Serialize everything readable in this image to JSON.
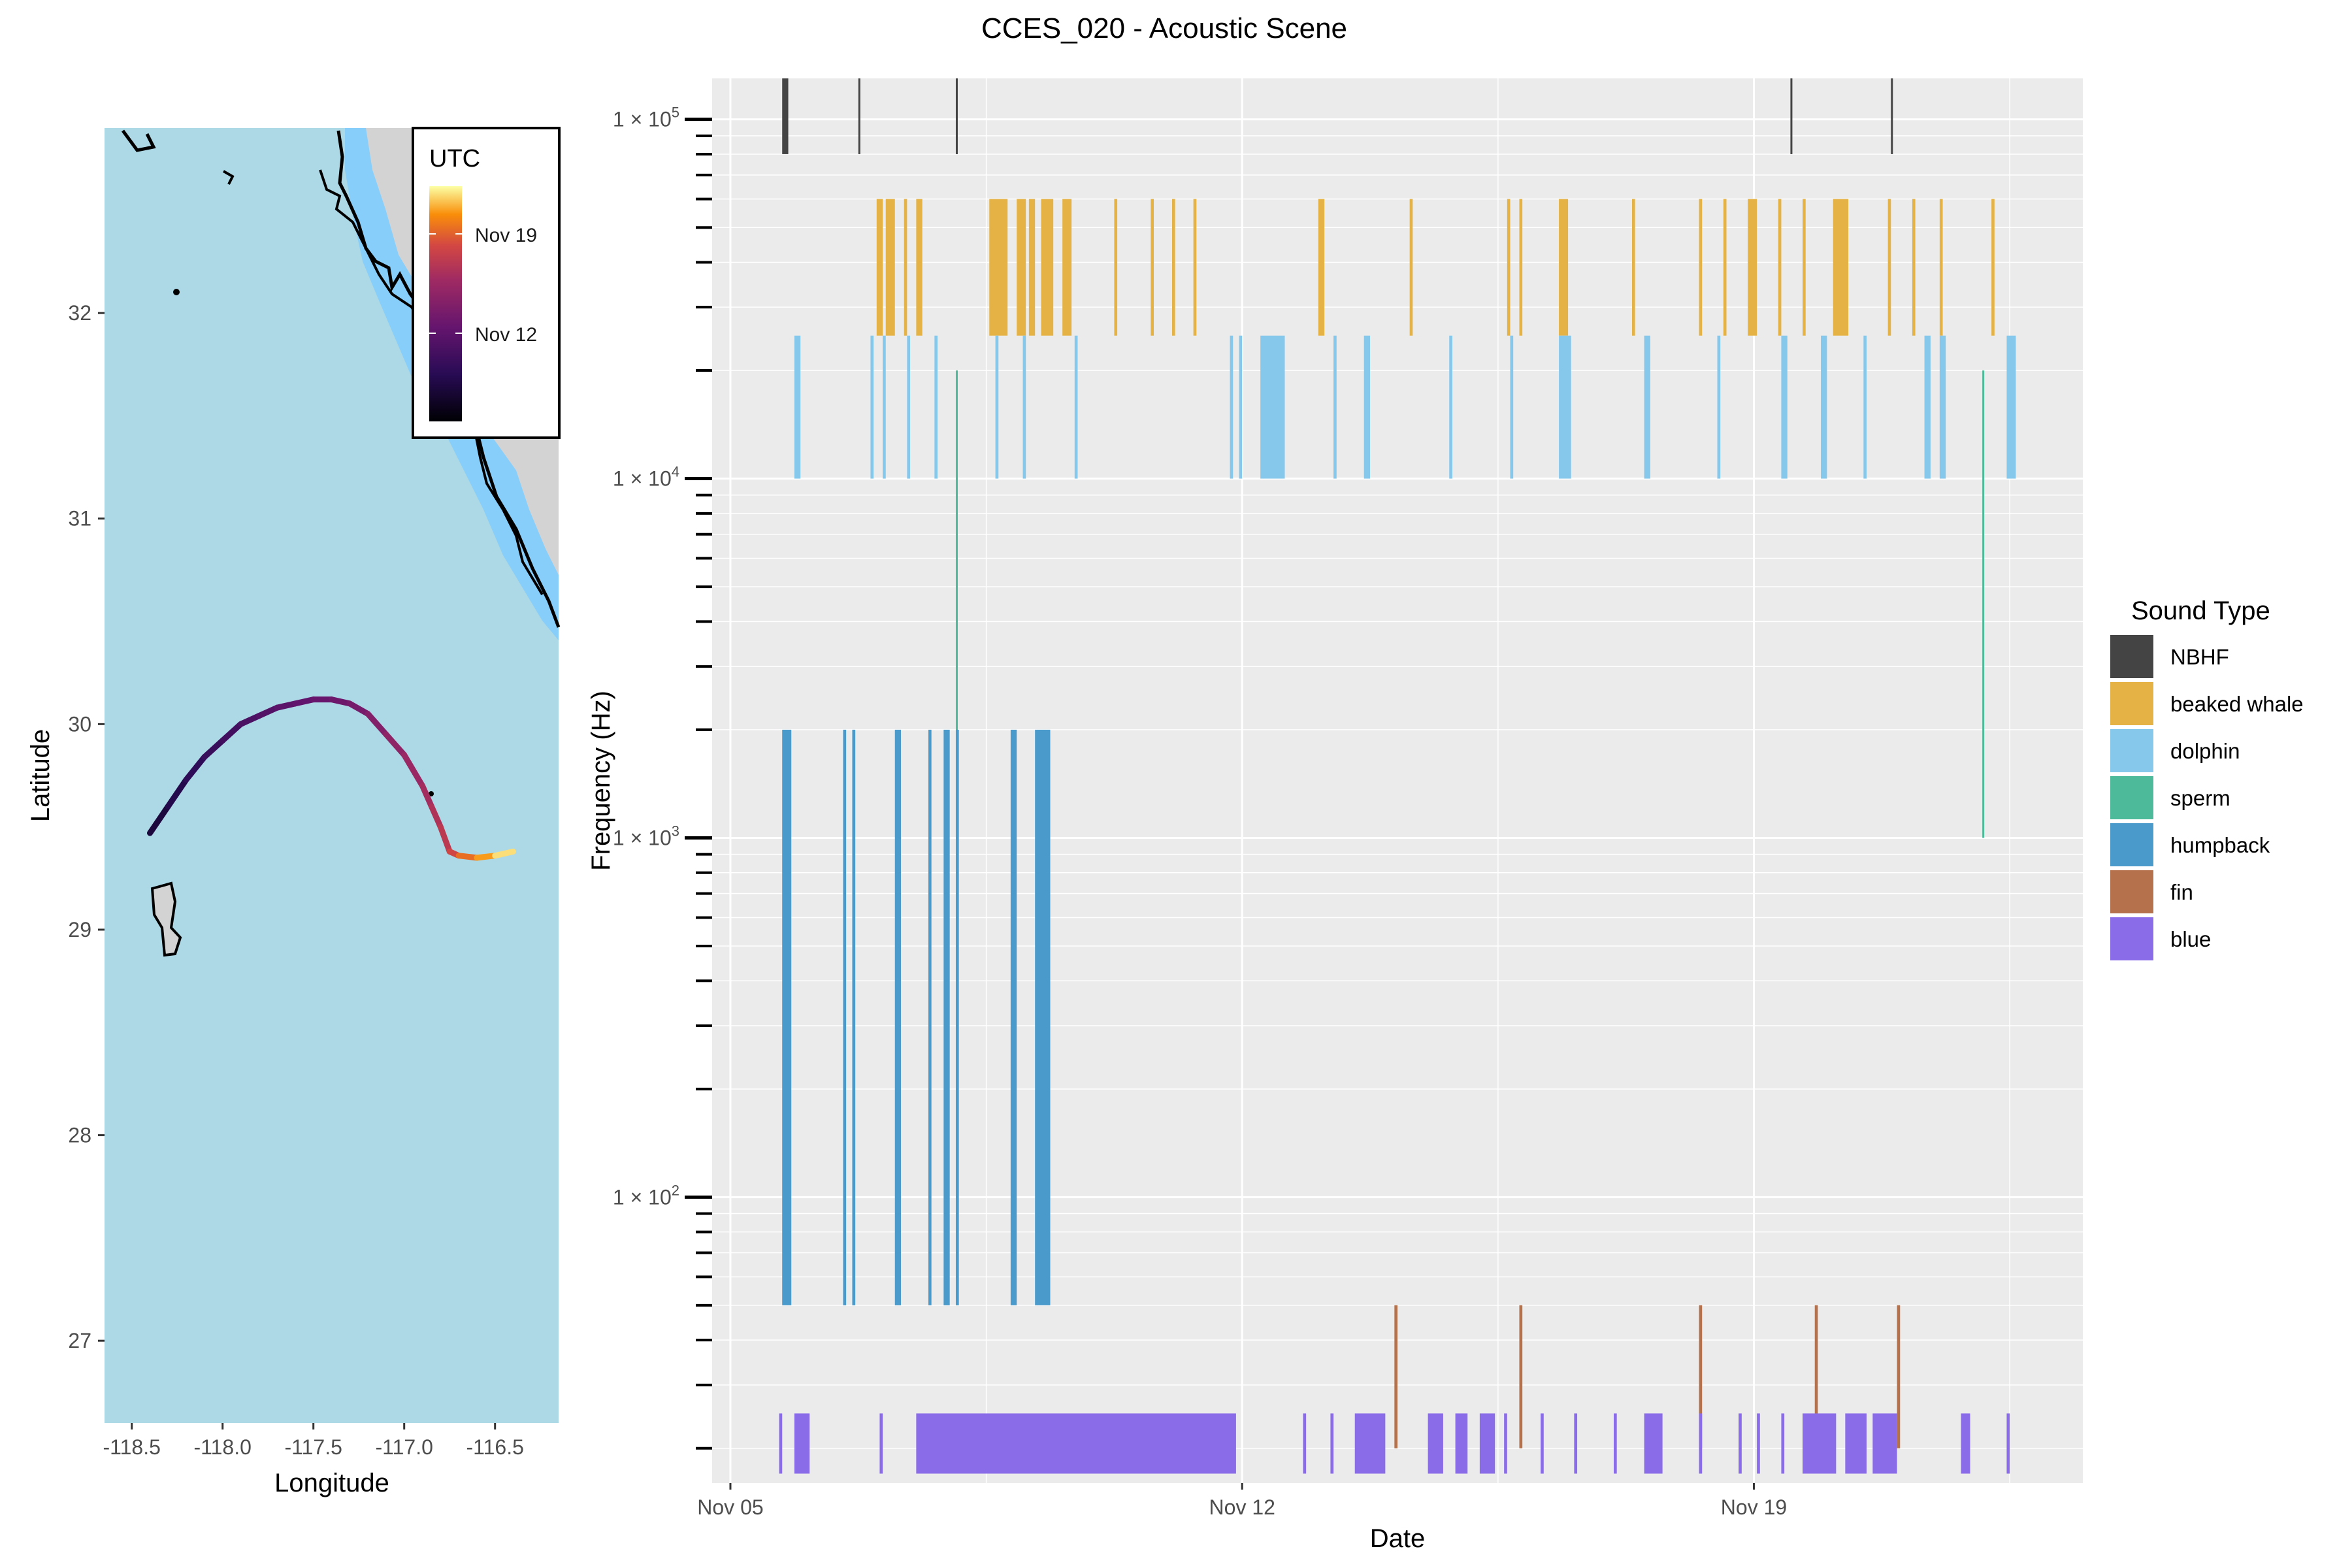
{
  "title": "CCES_020 - Acoustic Scene",
  "colors": {
    "panel_bg": "#ebebeb",
    "grid": "#ffffff",
    "sea": "#add8e6",
    "shallow": "#87cefa",
    "land": "#d3d3d3",
    "coast": "#000000"
  },
  "chart_data": [
    {
      "type": "map",
      "xlabel": "Longitude",
      "ylabel": "Latitude",
      "xlim": [
        -118.65,
        -116.15
      ],
      "ylim": [
        26.6,
        32.9
      ],
      "xticks": [
        -118.5,
        -118.0,
        -117.5,
        -117.0,
        -116.5
      ],
      "xtick_labels": [
        "-118.5",
        "-118.0",
        "-117.5",
        "-117.0",
        "-116.5"
      ],
      "yticks": [
        27,
        28,
        29,
        30,
        31,
        32
      ],
      "ytick_labels": [
        "27",
        "28",
        "29",
        "30",
        "31",
        "32"
      ],
      "legend": {
        "title": "UTC",
        "labels": [
          "Nov 19",
          "Nov 12"
        ],
        "colormap": "inferno",
        "placement": "top-right"
      },
      "track": {
        "x": [
          -118.4,
          -118.3,
          -118.2,
          -118.1,
          -118.0,
          -117.9,
          -117.8,
          -117.7,
          -117.6,
          -117.5,
          -117.4,
          -117.3,
          -117.2,
          -117.1,
          -117.0,
          -116.9,
          -116.85,
          -116.8,
          -116.75,
          -116.7,
          -116.6,
          -116.5,
          -116.4
        ],
        "y": [
          29.47,
          29.6,
          29.73,
          29.84,
          29.92,
          30.0,
          30.04,
          30.08,
          30.1,
          30.12,
          30.12,
          30.1,
          30.05,
          29.95,
          29.85,
          29.7,
          29.6,
          29.5,
          29.38,
          29.36,
          29.35,
          29.36,
          29.38
        ],
        "color_fraction": [
          0.12,
          0.16,
          0.2,
          0.24,
          0.27,
          0.3,
          0.33,
          0.36,
          0.38,
          0.4,
          0.42,
          0.44,
          0.48,
          0.52,
          0.56,
          0.6,
          0.63,
          0.66,
          0.7,
          0.78,
          0.86,
          0.93,
          1.0
        ]
      }
    },
    {
      "type": "timeline",
      "xlabel": "Date",
      "ylabel": "Frequency (Hz)",
      "y_scale": "log",
      "xlim": [
        "2023-11-04T18:00",
        "2023-11-23T12:00"
      ],
      "ylim": [
        16,
        130000
      ],
      "xticks": [
        "2023-11-05",
        "2023-11-12",
        "2023-11-19"
      ],
      "xtick_labels": [
        "Nov 05",
        "Nov 12",
        "Nov 19"
      ],
      "yticks": [
        100,
        1000,
        10000,
        100000
      ],
      "ytick_labels": [
        "1 × 10",
        "1 × 10",
        "1 × 10",
        "1 × 10"
      ],
      "ytick_exponents": [
        "2",
        "3",
        "4",
        "5"
      ],
      "legend": {
        "title": "Sound Type",
        "placement": "right",
        "entries": [
          "NBHF",
          "beaked whale",
          "dolphin",
          "sperm",
          "humpback",
          "fin",
          "blue"
        ]
      },
      "series": [
        {
          "name": "NBHF",
          "color": "#444444",
          "freq_range": [
            80000,
            130000
          ],
          "events": [
            [
              "2023-11-05T17:00",
              "2023-11-05T19:00"
            ],
            [
              "2023-11-06T18:00",
              "2023-11-06T18:30"
            ],
            [
              "2023-11-08T02:00",
              "2023-11-08T02:30"
            ],
            [
              "2023-11-19T12:00",
              "2023-11-19T12:30"
            ],
            [
              "2023-11-20T21:00",
              "2023-11-20T21:30"
            ]
          ]
        },
        {
          "name": "beaked whale",
          "color": "#e5b345",
          "freq_range": [
            25000,
            60000
          ],
          "events": [
            [
              "2023-11-07T00:00",
              "2023-11-07T02:00"
            ],
            [
              "2023-11-07T03:00",
              "2023-11-07T06:00"
            ],
            [
              "2023-11-07T09:00",
              "2023-11-07T10:00"
            ],
            [
              "2023-11-07T13:00",
              "2023-11-07T15:00"
            ],
            [
              "2023-11-08T13:00",
              "2023-11-08T19:00"
            ],
            [
              "2023-11-08T22:00",
              "2023-11-09T01:00"
            ],
            [
              "2023-11-09T02:00",
              "2023-11-09T04:00"
            ],
            [
              "2023-11-09T06:00",
              "2023-11-09T10:00"
            ],
            [
              "2023-11-09T13:00",
              "2023-11-09T16:00"
            ],
            [
              "2023-11-10T06:00",
              "2023-11-10T07:00"
            ],
            [
              "2023-11-10T18:00",
              "2023-11-10T19:00"
            ],
            [
              "2023-11-11T01:00",
              "2023-11-11T02:00"
            ],
            [
              "2023-11-11T08:00",
              "2023-11-11T09:00"
            ],
            [
              "2023-11-13T01:00",
              "2023-11-13T03:00"
            ],
            [
              "2023-11-14T07:00",
              "2023-11-14T08:00"
            ],
            [
              "2023-11-15T15:00",
              "2023-11-15T16:00"
            ],
            [
              "2023-11-15T19:00",
              "2023-11-15T20:00"
            ],
            [
              "2023-11-16T08:00",
              "2023-11-16T11:00"
            ],
            [
              "2023-11-17T08:00",
              "2023-11-17T09:00"
            ],
            [
              "2023-11-18T06:00",
              "2023-11-18T07:00"
            ],
            [
              "2023-11-18T14:00",
              "2023-11-18T15:00"
            ],
            [
              "2023-11-18T22:00",
              "2023-11-19T01:00"
            ],
            [
              "2023-11-19T08:00",
              "2023-11-19T09:00"
            ],
            [
              "2023-11-19T16:00",
              "2023-11-19T17:00"
            ],
            [
              "2023-11-20T02:00",
              "2023-11-20T07:00"
            ],
            [
              "2023-11-20T20:00",
              "2023-11-20T21:00"
            ],
            [
              "2023-11-21T04:00",
              "2023-11-21T05:00"
            ],
            [
              "2023-11-21T13:00",
              "2023-11-21T14:00"
            ],
            [
              "2023-11-22T06:00",
              "2023-11-22T07:00"
            ]
          ]
        },
        {
          "name": "dolphin",
          "color": "#86c7ec",
          "freq_range": [
            10000,
            25000
          ],
          "events": [
            [
              "2023-11-05T21:00",
              "2023-11-05T23:00"
            ],
            [
              "2023-11-06T22:00",
              "2023-11-06T23:00"
            ],
            [
              "2023-11-07T02:00",
              "2023-11-07T03:00"
            ],
            [
              "2023-11-07T10:00",
              "2023-11-07T11:00"
            ],
            [
              "2023-11-07T19:00",
              "2023-11-07T20:00"
            ],
            [
              "2023-11-08T15:00",
              "2023-11-08T16:00"
            ],
            [
              "2023-11-09T00:00",
              "2023-11-09T01:00"
            ],
            [
              "2023-11-09T17:00",
              "2023-11-09T18:00"
            ],
            [
              "2023-11-11T20:00",
              "2023-11-11T21:00"
            ],
            [
              "2023-11-11T23:00",
              "2023-11-12T00:00"
            ],
            [
              "2023-11-12T06:00",
              "2023-11-12T14:00"
            ],
            [
              "2023-11-13T06:00",
              "2023-11-13T07:00"
            ],
            [
              "2023-11-13T16:00",
              "2023-11-13T18:00"
            ],
            [
              "2023-11-14T20:00",
              "2023-11-14T21:00"
            ],
            [
              "2023-11-15T16:00",
              "2023-11-15T17:00"
            ],
            [
              "2023-11-16T08:00",
              "2023-11-16T12:00"
            ],
            [
              "2023-11-17T12:00",
              "2023-11-17T14:00"
            ],
            [
              "2023-11-18T12:00",
              "2023-11-18T13:00"
            ],
            [
              "2023-11-19T09:00",
              "2023-11-19T11:00"
            ],
            [
              "2023-11-19T22:00",
              "2023-11-20T00:00"
            ],
            [
              "2023-11-20T12:00",
              "2023-11-20T13:00"
            ],
            [
              "2023-11-21T08:00",
              "2023-11-21T10:00"
            ],
            [
              "2023-11-21T13:00",
              "2023-11-21T15:00"
            ],
            [
              "2023-11-22T11:00",
              "2023-11-22T14:00"
            ]
          ]
        },
        {
          "name": "sperm",
          "color": "#4dbb99",
          "freq_range": [
            1000,
            20000
          ],
          "events": [
            [
              "2023-11-08T02:00",
              "2023-11-08T02:30"
            ],
            [
              "2023-11-22T03:00",
              "2023-11-22T03:30"
            ]
          ]
        },
        {
          "name": "humpback",
          "color": "#4a9acc",
          "freq_range": [
            50,
            2000
          ],
          "events": [
            [
              "2023-11-05T17:00",
              "2023-11-05T20:00"
            ],
            [
              "2023-11-06T13:00",
              "2023-11-06T14:00"
            ],
            [
              "2023-11-06T16:00",
              "2023-11-06T17:00"
            ],
            [
              "2023-11-07T06:00",
              "2023-11-07T08:00"
            ],
            [
              "2023-11-07T17:00",
              "2023-11-07T18:00"
            ],
            [
              "2023-11-07T22:00",
              "2023-11-08T00:00"
            ],
            [
              "2023-11-08T02:00",
              "2023-11-08T03:00"
            ],
            [
              "2023-11-08T20:00",
              "2023-11-08T22:00"
            ],
            [
              "2023-11-09T04:00",
              "2023-11-09T09:00"
            ]
          ]
        },
        {
          "name": "fin",
          "color": "#b4714b",
          "freq_range": [
            20,
            50
          ],
          "events": [
            [
              "2023-11-14T02:00",
              "2023-11-14T03:00"
            ],
            [
              "2023-11-15T19:00",
              "2023-11-15T20:00"
            ],
            [
              "2023-11-18T06:00",
              "2023-11-18T07:00"
            ],
            [
              "2023-11-19T20:00",
              "2023-11-19T21:00"
            ],
            [
              "2023-11-20T23:00",
              "2023-11-21T00:00"
            ]
          ]
        },
        {
          "name": "blue",
          "color": "#8a6ce8",
          "freq_range": [
            17,
            25
          ],
          "events": [
            [
              "2023-11-05T16:00",
              "2023-11-05T17:00"
            ],
            [
              "2023-11-05T21:00",
              "2023-11-06T02:00"
            ],
            [
              "2023-11-07T01:00",
              "2023-11-07T02:00"
            ],
            [
              "2023-11-07T13:00",
              "2023-11-11T22:00"
            ],
            [
              "2023-11-12T20:00",
              "2023-11-12T21:00"
            ],
            [
              "2023-11-13T05:00",
              "2023-11-13T06:00"
            ],
            [
              "2023-11-13T13:00",
              "2023-11-13T23:00"
            ],
            [
              "2023-11-14T13:00",
              "2023-11-14T18:00"
            ],
            [
              "2023-11-14T22:00",
              "2023-11-15T02:00"
            ],
            [
              "2023-11-15T06:00",
              "2023-11-15T11:00"
            ],
            [
              "2023-11-15T14:00",
              "2023-11-15T15:00"
            ],
            [
              "2023-11-16T02:00",
              "2023-11-16T03:00"
            ],
            [
              "2023-11-16T13:00",
              "2023-11-16T14:00"
            ],
            [
              "2023-11-17T02:00",
              "2023-11-17T03:00"
            ],
            [
              "2023-11-17T12:00",
              "2023-11-17T18:00"
            ],
            [
              "2023-11-18T06:00",
              "2023-11-18T07:00"
            ],
            [
              "2023-11-18T19:00",
              "2023-11-18T20:00"
            ],
            [
              "2023-11-19T01:00",
              "2023-11-19T02:00"
            ],
            [
              "2023-11-19T09:00",
              "2023-11-19T10:00"
            ],
            [
              "2023-11-19T16:00",
              "2023-11-20T03:00"
            ],
            [
              "2023-11-20T06:00",
              "2023-11-20T13:00"
            ],
            [
              "2023-11-20T15:00",
              "2023-11-20T23:00"
            ],
            [
              "2023-11-21T20:00",
              "2023-11-21T23:00"
            ],
            [
              "2023-11-22T11:00",
              "2023-11-22T12:00"
            ]
          ]
        }
      ]
    }
  ]
}
